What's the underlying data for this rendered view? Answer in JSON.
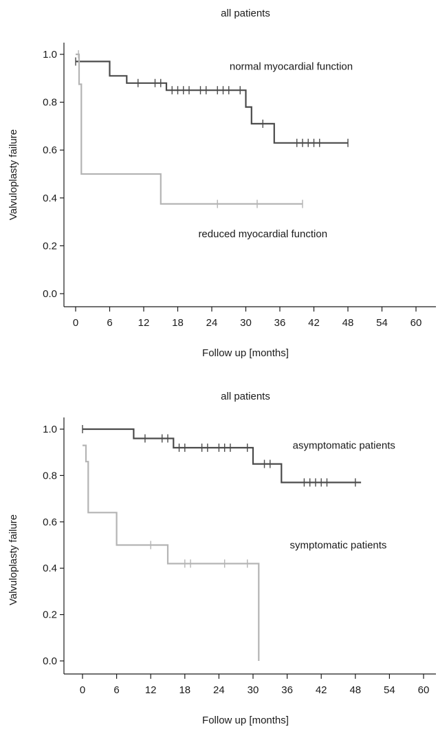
{
  "chart_data": [
    {
      "type": "line",
      "title": "all patients",
      "xlabel": "Follow up [months]",
      "ylabel": "Valvuloplasty failure",
      "xlim": [
        -3,
        63
      ],
      "ylim": [
        -0.05,
        1.05
      ],
      "xticks": [
        0,
        6,
        12,
        18,
        24,
        30,
        36,
        42,
        48,
        54,
        60
      ],
      "xtick_labels": [
        "0",
        "6",
        "12",
        "18",
        "24",
        "30",
        "36",
        "42",
        "48",
        "54",
        "60"
      ],
      "yticks": [
        0.0,
        0.2,
        0.4,
        0.6,
        0.8,
        1.0
      ],
      "ytick_labels": [
        "0.0",
        "0.2",
        "0.4",
        "0.6",
        "0.8",
        "1.0"
      ],
      "grid": false,
      "series": [
        {
          "name": "normal myocardial function",
          "color": "#4a4a4a",
          "step_x": [
            0,
            6,
            6,
            9,
            9,
            16,
            16,
            30,
            30,
            31,
            31,
            35,
            35,
            48
          ],
          "step_y": [
            0.97,
            0.97,
            0.91,
            0.91,
            0.88,
            0.88,
            0.85,
            0.85,
            0.78,
            0.78,
            0.71,
            0.71,
            0.63,
            0.63
          ],
          "censor_x": [
            0,
            11,
            14,
            15,
            17,
            18,
            19,
            20,
            22,
            23,
            25,
            26,
            27,
            29,
            33,
            39,
            40,
            41,
            42,
            43,
            48
          ],
          "censor_y": [
            0.97,
            0.88,
            0.88,
            0.88,
            0.85,
            0.85,
            0.85,
            0.85,
            0.85,
            0.85,
            0.85,
            0.85,
            0.85,
            0.85,
            0.71,
            0.63,
            0.63,
            0.63,
            0.63,
            0.63,
            0.63
          ]
        },
        {
          "name": "reduced myocardial function",
          "color": "#b4b4b4",
          "step_x": [
            0,
            0.6,
            0.6,
            1,
            1,
            15,
            15,
            40
          ],
          "step_y": [
            1.0,
            1.0,
            0.875,
            0.875,
            0.5,
            0.5,
            0.375,
            0.375
          ],
          "censor_x": [
            0.5,
            25,
            32,
            40
          ],
          "censor_y": [
            1.0,
            0.375,
            0.375,
            0.375
          ]
        }
      ],
      "annotations": [
        {
          "text": "normal myocardial function",
          "x": 38,
          "y": 0.95
        },
        {
          "text": "reduced myocardial function",
          "x": 33,
          "y": 0.25
        }
      ]
    },
    {
      "type": "line",
      "title": "all patients",
      "xlabel": "Follow up [months]",
      "ylabel": "Valvuloplasty failure",
      "xlim": [
        -3,
        63
      ],
      "ylim": [
        -0.05,
        1.05
      ],
      "xticks": [
        0,
        6,
        12,
        18,
        24,
        30,
        36,
        42,
        48,
        54,
        60
      ],
      "xtick_labels": [
        "0",
        "6",
        "12",
        "18",
        "24",
        "30",
        "36",
        "42",
        "48",
        "54",
        "60"
      ],
      "yticks": [
        0.0,
        0.2,
        0.4,
        0.6,
        0.8,
        1.0
      ],
      "ytick_labels": [
        "0.0",
        "0.2",
        "0.4",
        "0.6",
        "0.8",
        "1.0"
      ],
      "grid": false,
      "series": [
        {
          "name": "asymptomatic patients",
          "color": "#4a4a4a",
          "step_x": [
            0,
            9,
            9,
            16,
            16,
            30,
            30,
            35,
            35,
            49
          ],
          "step_y": [
            1.0,
            1.0,
            0.96,
            0.96,
            0.92,
            0.92,
            0.85,
            0.85,
            0.77,
            0.77
          ],
          "censor_x": [
            0,
            11,
            14,
            15,
            17,
            18,
            21,
            22,
            24,
            25,
            26,
            29,
            32,
            33,
            39,
            40,
            41,
            42,
            43,
            48
          ],
          "censor_y": [
            1.0,
            0.96,
            0.96,
            0.96,
            0.92,
            0.92,
            0.92,
            0.92,
            0.92,
            0.92,
            0.92,
            0.92,
            0.85,
            0.85,
            0.77,
            0.77,
            0.77,
            0.77,
            0.77,
            0.77
          ]
        },
        {
          "name": "symptomatic patients",
          "color": "#b4b4b4",
          "step_x": [
            0,
            0.6,
            0.6,
            1,
            1,
            6,
            6,
            15,
            15,
            31,
            31
          ],
          "step_y": [
            0.93,
            0.93,
            0.86,
            0.86,
            0.64,
            0.64,
            0.5,
            0.5,
            0.42,
            0.42,
            0.0
          ],
          "censor_x": [
            12,
            18,
            19,
            25,
            29
          ],
          "censor_y": [
            0.5,
            0.42,
            0.42,
            0.42,
            0.42
          ]
        }
      ],
      "annotations": [
        {
          "text": "asymptomatic patients",
          "x": 46,
          "y": 0.93
        },
        {
          "text": "symptomatic patients",
          "x": 45,
          "y": 0.5
        }
      ]
    }
  ]
}
